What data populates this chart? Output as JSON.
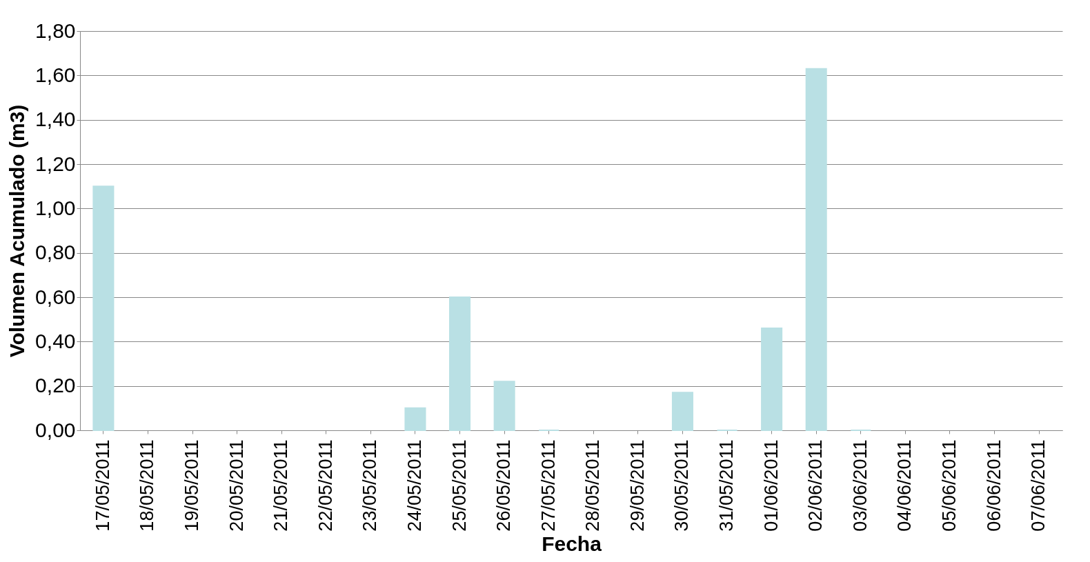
{
  "chart_data": {
    "type": "bar",
    "xlabel": "Fecha",
    "ylabel": "Volumen Acumulado (m3)",
    "categories": [
      "17/05/2011",
      "18/05/2011",
      "19/05/2011",
      "20/05/2011",
      "21/05/2011",
      "22/05/2011",
      "23/05/2011",
      "24/05/2011",
      "25/05/2011",
      "26/05/2011",
      "27/05/2011",
      "28/05/2011",
      "29/05/2011",
      "30/05/2011",
      "31/05/2011",
      "01/06/2011",
      "02/06/2011",
      "03/06/2011",
      "04/06/2011",
      "05/06/2011",
      "06/06/2011",
      "07/06/2011"
    ],
    "values": [
      1.1,
      null,
      null,
      null,
      null,
      null,
      null,
      0.1,
      0.6,
      0.22,
      0.0,
      null,
      null,
      0.17,
      0.0,
      0.46,
      1.63,
      0.0,
      null,
      null,
      null,
      null
    ],
    "color": "#b9e0e4",
    "ylim": [
      0,
      1.8
    ],
    "yticks": [
      {
        "value": 0,
        "label": "0,00"
      },
      {
        "value": 0.2,
        "label": "0,20"
      },
      {
        "value": 0.4,
        "label": "0,40"
      },
      {
        "value": 0.6,
        "label": "0,60"
      },
      {
        "value": 0.8,
        "label": "0,80"
      },
      {
        "value": 1.0,
        "label": "1,00"
      },
      {
        "value": 1.2,
        "label": "1,20"
      },
      {
        "value": 1.4,
        "label": "1,40"
      },
      {
        "value": 1.6,
        "label": "1,60"
      },
      {
        "value": 1.8,
        "label": "1,80"
      }
    ],
    "grid": "y"
  }
}
